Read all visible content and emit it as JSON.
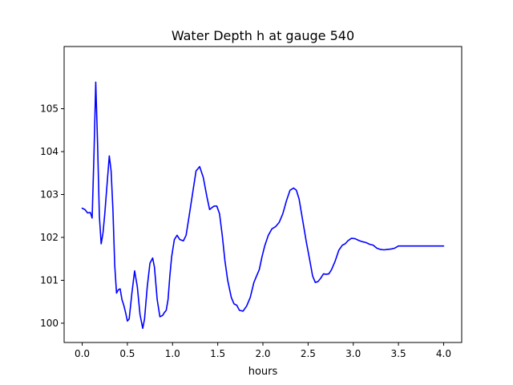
{
  "chart_data": {
    "type": "line",
    "title": "Water Depth h at gauge 540",
    "xlabel": "hours",
    "ylabel": "",
    "xlim": [
      -0.2,
      4.2
    ],
    "ylim": [
      99.55,
      106.45
    ],
    "x_ticks": [
      0.0,
      0.5,
      1.0,
      1.5,
      2.0,
      2.5,
      3.0,
      3.5,
      4.0
    ],
    "x_tick_labels": [
      "0.0",
      "0.5",
      "1.0",
      "1.5",
      "2.0",
      "2.5",
      "3.0",
      "3.5",
      "4.0"
    ],
    "y_ticks": [
      100,
      101,
      102,
      103,
      104,
      105
    ],
    "y_tick_labels": [
      "100",
      "101",
      "102",
      "103",
      "104",
      "105"
    ],
    "grid": false,
    "series": [
      {
        "color": "#0000ff",
        "x": [
          0.0,
          0.03,
          0.06,
          0.09,
          0.11,
          0.13,
          0.15,
          0.17,
          0.19,
          0.21,
          0.23,
          0.25,
          0.27,
          0.3,
          0.32,
          0.34,
          0.36,
          0.38,
          0.4,
          0.42,
          0.44,
          0.46,
          0.48,
          0.5,
          0.52,
          0.55,
          0.58,
          0.61,
          0.64,
          0.67,
          0.69,
          0.72,
          0.75,
          0.78,
          0.8,
          0.83,
          0.86,
          0.89,
          0.91,
          0.93,
          0.95,
          0.97,
          0.99,
          1.02,
          1.05,
          1.08,
          1.12,
          1.15,
          1.18,
          1.22,
          1.26,
          1.3,
          1.34,
          1.38,
          1.41,
          1.44,
          1.46,
          1.49,
          1.52,
          1.55,
          1.58,
          1.61,
          1.65,
          1.68,
          1.71,
          1.74,
          1.78,
          1.82,
          1.86,
          1.9,
          1.93,
          1.96,
          1.99,
          2.02,
          2.06,
          2.1,
          2.14,
          2.18,
          2.22,
          2.26,
          2.3,
          2.34,
          2.37,
          2.4,
          2.44,
          2.48,
          2.52,
          2.55,
          2.58,
          2.61,
          2.64,
          2.67,
          2.7,
          2.73,
          2.76,
          2.8,
          2.84,
          2.88,
          2.91,
          2.94,
          2.98,
          3.02,
          3.06,
          3.1,
          3.14,
          3.18,
          3.22,
          3.26,
          3.3,
          3.34,
          3.38,
          3.42,
          3.46,
          3.5,
          3.55,
          3.6,
          3.65,
          3.7,
          3.75,
          3.8,
          3.85,
          3.9,
          3.95,
          4.0
        ],
        "y": [
          102.68,
          102.65,
          102.57,
          102.58,
          102.45,
          103.9,
          105.62,
          104.2,
          102.5,
          101.85,
          102.1,
          102.55,
          103.1,
          103.9,
          103.55,
          102.65,
          101.35,
          100.7,
          100.78,
          100.8,
          100.55,
          100.42,
          100.25,
          100.05,
          100.1,
          100.7,
          101.22,
          100.85,
          100.2,
          99.88,
          100.1,
          100.85,
          101.4,
          101.52,
          101.3,
          100.55,
          100.15,
          100.18,
          100.25,
          100.3,
          100.55,
          101.1,
          101.55,
          101.95,
          102.05,
          101.95,
          101.92,
          102.05,
          102.45,
          103.0,
          103.55,
          103.65,
          103.4,
          102.95,
          102.65,
          102.7,
          102.73,
          102.73,
          102.55,
          102.05,
          101.45,
          101.0,
          100.6,
          100.45,
          100.42,
          100.3,
          100.28,
          100.4,
          100.6,
          100.95,
          101.1,
          101.25,
          101.55,
          101.8,
          102.05,
          102.2,
          102.25,
          102.35,
          102.55,
          102.85,
          103.1,
          103.15,
          103.1,
          102.9,
          102.4,
          101.9,
          101.45,
          101.1,
          100.95,
          100.97,
          101.05,
          101.15,
          101.14,
          101.15,
          101.25,
          101.45,
          101.7,
          101.82,
          101.85,
          101.92,
          101.98,
          101.97,
          101.93,
          101.9,
          101.88,
          101.84,
          101.82,
          101.75,
          101.72,
          101.71,
          101.72,
          101.73,
          101.75,
          101.8,
          101.8,
          101.8,
          101.8,
          101.8,
          101.8,
          101.8,
          101.8,
          101.8,
          101.8,
          101.8
        ]
      }
    ]
  }
}
